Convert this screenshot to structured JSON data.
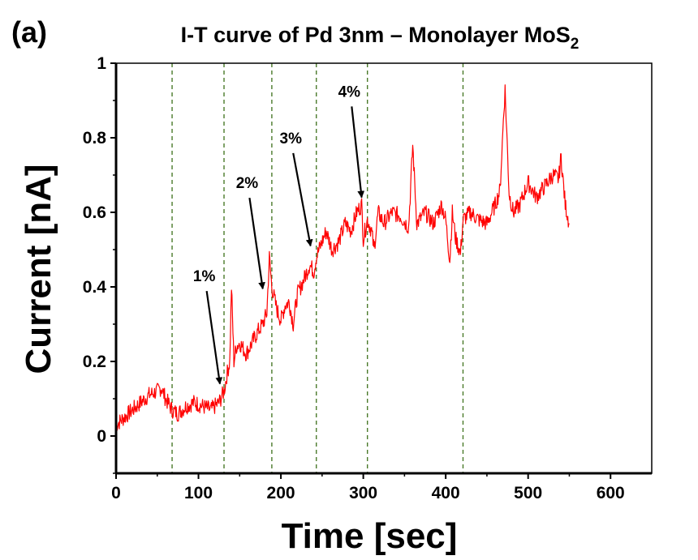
{
  "chart_data": {
    "type": "line",
    "panel_label": "(a)",
    "title": {
      "main": "I-T curve of Pd 3nm – Monolayer MoS",
      "sub": "2"
    },
    "xlabel": "Time [sec]",
    "ylabel": "Current [nA]",
    "xlim": [
      0,
      650
    ],
    "ylim": [
      -0.1,
      1.0
    ],
    "x_ticks": [
      0,
      100,
      200,
      300,
      400,
      500,
      600
    ],
    "x_tick_labels": [
      "0",
      "100",
      "200",
      "300",
      "400",
      "500",
      "600"
    ],
    "y_ticks": [
      0,
      0.2,
      0.4,
      0.6,
      0.8,
      1.0
    ],
    "y_tick_labels": [
      "0",
      "0.2",
      "0.4",
      "0.6",
      "0.8",
      "1"
    ],
    "grid": false,
    "line_color": "#ff0000",
    "vline_color": "#4a7a2a",
    "vlines": [
      68,
      131,
      189,
      243,
      305,
      421
    ],
    "series": [
      {
        "x": [
          0,
          10,
          20,
          30,
          40,
          50,
          55,
          60,
          68,
          75,
          85,
          95,
          105,
          115,
          125,
          131,
          135,
          138,
          140,
          143,
          146,
          150,
          158,
          165,
          172,
          178,
          183,
          186,
          189,
          195,
          200,
          205,
          210,
          215,
          220,
          228,
          235,
          240,
          243,
          248,
          255,
          262,
          270,
          278,
          285,
          292,
          298,
          300,
          305,
          310,
          313,
          318,
          325,
          335,
          345,
          355,
          360,
          365,
          375,
          385,
          395,
          400,
          405,
          408,
          412,
          418,
          421,
          430,
          440,
          450,
          460,
          466,
          470,
          472,
          474,
          477,
          482,
          490,
          500,
          510,
          520,
          530,
          537,
          540,
          545,
          550
        ],
        "y": [
          0.03,
          0.05,
          0.07,
          0.09,
          0.11,
          0.12,
          0.13,
          0.1,
          0.07,
          0.06,
          0.08,
          0.09,
          0.08,
          0.07,
          0.09,
          0.12,
          0.17,
          0.2,
          0.4,
          0.2,
          0.24,
          0.25,
          0.22,
          0.25,
          0.28,
          0.3,
          0.33,
          0.48,
          0.4,
          0.34,
          0.31,
          0.35,
          0.36,
          0.3,
          0.38,
          0.42,
          0.46,
          0.44,
          0.48,
          0.51,
          0.55,
          0.5,
          0.52,
          0.57,
          0.55,
          0.6,
          0.62,
          0.53,
          0.58,
          0.55,
          0.5,
          0.6,
          0.57,
          0.6,
          0.59,
          0.56,
          0.78,
          0.57,
          0.6,
          0.57,
          0.62,
          0.58,
          0.47,
          0.6,
          0.53,
          0.49,
          0.58,
          0.6,
          0.58,
          0.57,
          0.62,
          0.66,
          0.85,
          0.93,
          0.82,
          0.65,
          0.6,
          0.62,
          0.68,
          0.64,
          0.67,
          0.7,
          0.69,
          0.75,
          0.62,
          0.57
        ]
      }
    ],
    "annotations": [
      {
        "text": "1%",
        "tx": 107,
        "ty": 0.415,
        "ax": 126,
        "ay": 0.14
      },
      {
        "text": "2%",
        "tx": 159,
        "ty": 0.665,
        "ax": 178,
        "ay": 0.395
      },
      {
        "text": "3%",
        "tx": 212,
        "ty": 0.785,
        "ax": 236,
        "ay": 0.51
      },
      {
        "text": "4%",
        "tx": 283,
        "ty": 0.91,
        "ax": 298,
        "ay": 0.64
      }
    ]
  }
}
